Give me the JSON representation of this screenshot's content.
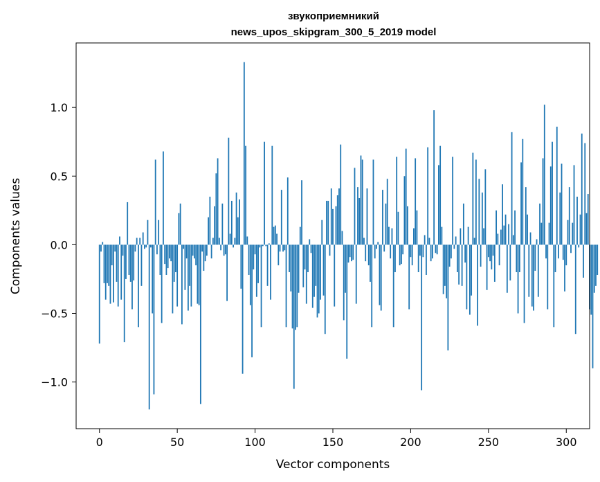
{
  "colors": {
    "bar": "#1f77b4",
    "axes": "#000000",
    "background": "#ffffff"
  },
  "chart_data": {
    "type": "bar",
    "title": "звукоприемникий",
    "subtitle": "news_upos_skipgram_300_5_2019 model",
    "xlabel": "Vector components",
    "ylabel": "Components values",
    "xlim": [
      -15,
      315
    ],
    "ylim": [
      -1.34,
      1.47
    ],
    "grid": false,
    "legend": "none",
    "x_ticks": [
      0,
      50,
      100,
      150,
      200,
      250,
      300
    ],
    "x_tick_labels": [
      "0",
      "50",
      "100",
      "150",
      "200",
      "250",
      "300"
    ],
    "y_ticks": [
      -1.0,
      -0.5,
      0.0,
      0.5,
      1.0
    ],
    "y_tick_labels": [
      "−1.0",
      "−0.5",
      "0.0",
      "0.5",
      "1.0"
    ],
    "values": [
      -0.72,
      -0.05,
      0.02,
      -0.28,
      -0.4,
      -0.28,
      -0.3,
      -0.43,
      -0.15,
      -0.42,
      -0.05,
      -0.27,
      -0.45,
      0.06,
      -0.4,
      -0.08,
      -0.71,
      -0.25,
      0.31,
      -0.22,
      -0.27,
      -0.47,
      -0.26,
      -0.05,
      0.05,
      -0.6,
      0.05,
      -0.3,
      0.09,
      -0.03,
      -0.02,
      0.18,
      -1.2,
      -0.02,
      -0.5,
      -1.09,
      0.62,
      -0.07,
      0.18,
      -0.22,
      -0.57,
      0.68,
      -0.14,
      -0.22,
      -0.17,
      -0.1,
      -0.12,
      -0.5,
      -0.27,
      -0.2,
      -0.45,
      0.23,
      0.3,
      -0.58,
      -0.03,
      -0.33,
      -0.1,
      -0.48,
      -0.3,
      -0.45,
      -0.08,
      -0.1,
      -0.15,
      -0.43,
      -0.44,
      -1.16,
      -0.05,
      -0.19,
      -0.12,
      -0.08,
      0.2,
      0.35,
      -0.1,
      0.05,
      0.28,
      0.52,
      0.63,
      0.05,
      -0.04,
      0.3,
      -0.08,
      -0.07,
      -0.41,
      0.78,
      0.08,
      0.32,
      -0.02,
      0.05,
      0.38,
      0.2,
      0.33,
      -0.32,
      -0.94,
      1.33,
      0.72,
      0.06,
      -0.22,
      -0.44,
      -0.82,
      -0.18,
      -0.07,
      -0.38,
      -0.28,
      -0.02,
      -0.6,
      -0.01,
      0.75,
      -0.01,
      -0.3,
      0.01,
      -0.4,
      0.72,
      0.13,
      0.14,
      0.08,
      -0.15,
      -0.05,
      0.4,
      -0.05,
      -0.04,
      -0.6,
      0.49,
      -0.2,
      -0.34,
      -0.61,
      -1.05,
      -0.62,
      -0.6,
      -0.35,
      0.13,
      0.47,
      -0.31,
      -0.18,
      -0.43,
      -0.2,
      0.04,
      -0.06,
      -0.46,
      -0.38,
      -0.3,
      -0.53,
      -0.5,
      -0.4,
      0.18,
      -0.37,
      -0.65,
      0.32,
      0.32,
      -0.08,
      0.41,
      0.26,
      -0.45,
      0.28,
      0.36,
      0.41,
      0.73,
      0.1,
      -0.55,
      -0.35,
      -0.83,
      -0.13,
      -0.09,
      -0.12,
      -0.11,
      0.56,
      -0.43,
      0.42,
      0.34,
      0.65,
      0.62,
      0.05,
      -0.12,
      0.41,
      -0.15,
      -0.27,
      -0.6,
      0.62,
      -0.1,
      -0.03,
      0.02,
      -0.44,
      -0.48,
      0.4,
      -0.05,
      0.3,
      0.48,
      0.13,
      -0.1,
      0.12,
      -0.6,
      -0.2,
      0.64,
      0.24,
      -0.15,
      -0.14,
      -0.07,
      0.5,
      0.7,
      0.28,
      -0.47,
      -0.09,
      -0.15,
      0.12,
      0.63,
      0.25,
      -0.2,
      -0.08,
      -1.06,
      -0.09,
      0.07,
      -0.22,
      0.71,
      0.05,
      -0.12,
      -0.1,
      0.98,
      -0.06,
      -0.07,
      0.58,
      0.72,
      0.13,
      -0.36,
      -0.3,
      -0.39,
      -0.77,
      -0.16,
      -0.1,
      0.64,
      -0.03,
      0.06,
      -0.2,
      -0.29,
      0.12,
      -0.3,
      0.3,
      -0.13,
      -0.47,
      0.13,
      -0.51,
      -0.37,
      0.67,
      0.05,
      0.62,
      -0.59,
      0.48,
      -0.16,
      0.38,
      0.12,
      0.55,
      -0.33,
      -0.09,
      -0.12,
      -0.18,
      -0.08,
      -0.27,
      0.25,
      0.08,
      -0.15,
      0.11,
      0.44,
      0.14,
      0.22,
      -0.35,
      0.15,
      -0.26,
      0.82,
      0.07,
      0.25,
      -0.2,
      -0.5,
      -0.2,
      0.6,
      0.77,
      -0.57,
      0.42,
      0.22,
      -0.38,
      0.09,
      -0.45,
      -0.48,
      -0.19,
      0.04,
      -0.38,
      0.3,
      0.16,
      0.63,
      1.02,
      -0.1,
      -0.47,
      0.16,
      0.57,
      0.75,
      -0.6,
      -0.2,
      0.86,
      -0.1,
      0.38,
      0.59,
      -0.11,
      -0.34,
      -0.15,
      0.18,
      0.42,
      -0.06,
      0.16,
      0.58,
      -0.65,
      0.35,
      -0.02,
      0.22,
      0.81,
      -0.24,
      0.74,
      0.23,
      0.37,
      -0.47,
      -0.51,
      -0.9,
      -0.35,
      -0.3,
      -0.22
    ]
  }
}
